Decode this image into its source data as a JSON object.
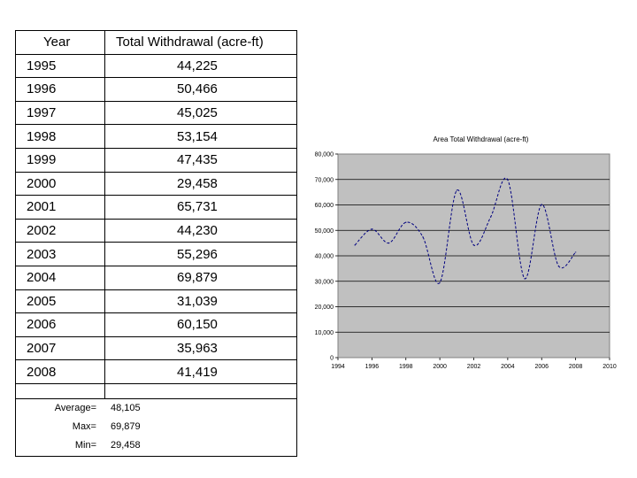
{
  "table": {
    "headers": [
      "Year",
      "Total Withdrawal (acre-ft)"
    ],
    "rows": [
      {
        "year": "1995",
        "value": "44,225"
      },
      {
        "year": "1996",
        "value": "50,466"
      },
      {
        "year": "1997",
        "value": "45,025"
      },
      {
        "year": "1998",
        "value": "53,154"
      },
      {
        "year": "1999",
        "value": "47,435"
      },
      {
        "year": "2000",
        "value": "29,458"
      },
      {
        "year": "2001",
        "value": "65,731"
      },
      {
        "year": "2002",
        "value": "44,230"
      },
      {
        "year": "2003",
        "value": "55,296"
      },
      {
        "year": "2004",
        "value": "69,879"
      },
      {
        "year": "2005",
        "value": "31,039"
      },
      {
        "year": "2006",
        "value": "60,150"
      },
      {
        "year": "2007",
        "value": "35,963"
      },
      {
        "year": "2008",
        "value": "41,419"
      }
    ],
    "stats": [
      {
        "label": "Average=",
        "value": "48,105"
      },
      {
        "label": "Max=",
        "value": "69,879"
      },
      {
        "label": "Min=",
        "value": "29,458"
      }
    ]
  },
  "chart_data": {
    "type": "line",
    "title": "Area Total Withdrawal (acre-ft)",
    "xlabel": "",
    "ylabel": "",
    "x": [
      1995,
      1996,
      1997,
      1998,
      1999,
      2000,
      2001,
      2002,
      2003,
      2004,
      2005,
      2006,
      2007,
      2008
    ],
    "series": [
      {
        "values": [
          44225,
          50466,
          45025,
          53154,
          47435,
          29458,
          65731,
          44230,
          55296,
          69879,
          31039,
          60150,
          35963,
          41419
        ]
      }
    ],
    "xlim": [
      1994,
      2010
    ],
    "ylim": [
      0,
      80000
    ],
    "x_ticks": [
      1994,
      1996,
      1998,
      2000,
      2002,
      2004,
      2006,
      2008,
      2010
    ],
    "x_tick_labels": [
      "1994",
      "1996",
      "1998",
      "2000",
      "2002",
      "2004",
      "2006",
      "2008",
      "2010"
    ],
    "y_ticks": [
      0,
      10000,
      20000,
      30000,
      40000,
      50000,
      60000,
      70000,
      80000
    ],
    "y_tick_labels": [
      "0",
      "10,000",
      "20,000",
      "30,000",
      "40,000",
      "50,000",
      "60,000",
      "70,000",
      "80,000"
    ],
    "grid": true,
    "legend": "none",
    "plot_bg": "#c0c0c0",
    "line_color": "#000080"
  }
}
